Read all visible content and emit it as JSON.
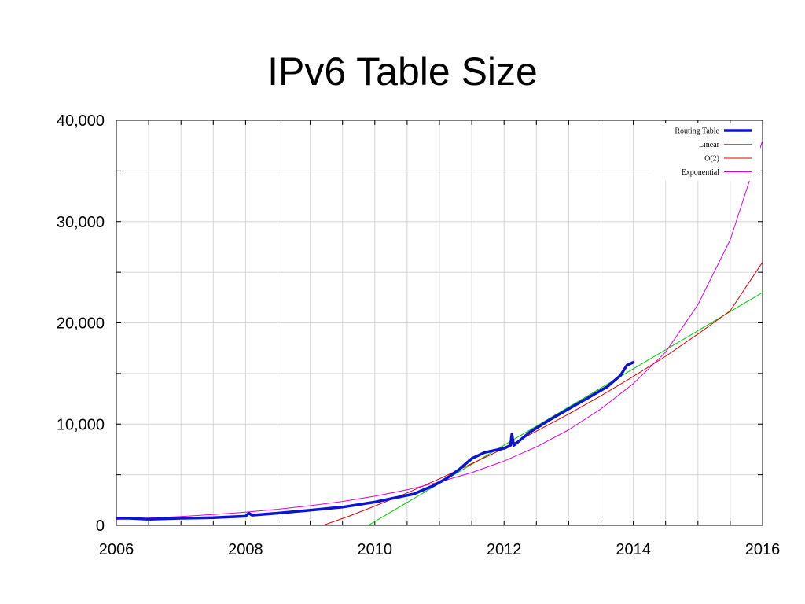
{
  "slide": {
    "title": "IPv6 Table Size"
  },
  "chart_data": {
    "type": "line",
    "title": "IPv6 Table Size",
    "xlabel": "",
    "ylabel": "",
    "xlim": [
      2006,
      2016
    ],
    "ylim": [
      0,
      40000
    ],
    "x_ticks": [
      2006,
      2008,
      2010,
      2012,
      2014,
      2016
    ],
    "x_tick_labels": [
      "2006",
      "2008",
      "2010",
      "2012",
      "2014",
      "2016"
    ],
    "y_ticks": [
      0,
      10000,
      20000,
      30000,
      40000
    ],
    "y_tick_labels": [
      "0",
      "10,000",
      "20,000",
      "30,000",
      "40,000"
    ],
    "grid": true,
    "legend_position": "top-right",
    "series": [
      {
        "name": "Routing Table",
        "color": "#0a14d2",
        "style": "thick",
        "x": [
          2006.0,
          2006.2,
          2006.5,
          2007.0,
          2007.5,
          2008.0,
          2008.05,
          2008.1,
          2008.5,
          2009.0,
          2009.5,
          2010.0,
          2010.3,
          2010.6,
          2010.9,
          2011.1,
          2011.3,
          2011.5,
          2011.7,
          2012.0,
          2012.1,
          2012.12,
          2012.15,
          2012.4,
          2012.7,
          2013.0,
          2013.3,
          2013.6,
          2013.8,
          2013.9,
          2014.0
        ],
        "y": [
          700,
          700,
          600,
          700,
          750,
          900,
          1200,
          1000,
          1200,
          1500,
          1800,
          2300,
          2700,
          3100,
          3900,
          4600,
          5500,
          6600,
          7200,
          7600,
          7900,
          9000,
          7900,
          9200,
          10400,
          11500,
          12600,
          13700,
          14800,
          15800,
          16100
        ]
      },
      {
        "name": "Linear",
        "color": "#00cc00",
        "x": [
          2009.9,
          2016.0
        ],
        "y": [
          0,
          23000
        ]
      },
      {
        "name": "O(2)",
        "color": "#dd0000",
        "x": [
          2009.2,
          2009.6,
          2010.0,
          2010.5,
          2011.0,
          2011.5,
          2012.0,
          2012.5,
          2013.0,
          2013.5,
          2014.0,
          2014.5,
          2015.0,
          2015.5,
          2016.0
        ],
        "y": [
          0,
          900,
          1900,
          3200,
          4600,
          6100,
          7600,
          9300,
          11000,
          12800,
          14700,
          16700,
          18900,
          21200,
          26000
        ]
      },
      {
        "name": "Exponential",
        "color": "#dd00dd",
        "x": [
          2006.0,
          2006.5,
          2007.0,
          2007.5,
          2008.0,
          2008.5,
          2009.0,
          2009.5,
          2010.0,
          2010.5,
          2011.0,
          2011.5,
          2012.0,
          2012.5,
          2013.0,
          2013.5,
          2014.0,
          2014.5,
          2015.0,
          2015.5,
          2016.0
        ],
        "y": [
          600,
          720,
          880,
          1070,
          1300,
          1590,
          1940,
          2360,
          2880,
          3510,
          4280,
          5210,
          6350,
          7740,
          9440,
          11500,
          14000,
          17100,
          21800,
          28200,
          38000
        ]
      }
    ]
  }
}
